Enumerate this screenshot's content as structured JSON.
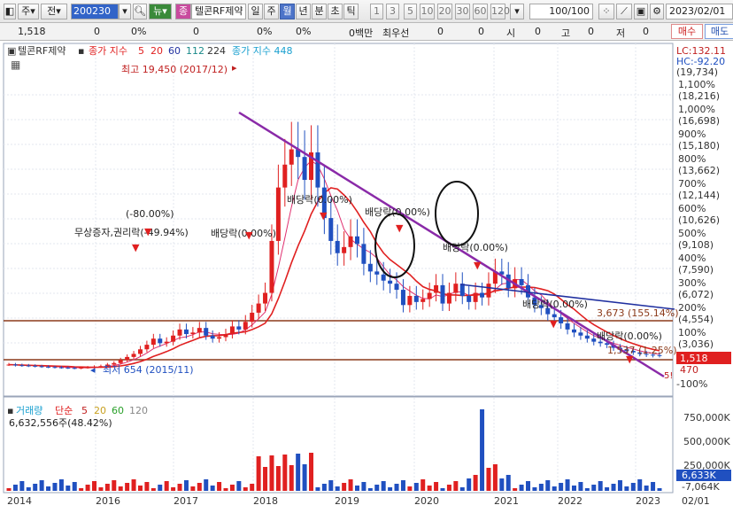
{
  "toolbar": {
    "type_label": "주",
    "market_label": "전",
    "code": "200230",
    "search_icon": "magnifier-icon",
    "news_label": "뉴",
    "chart_toggle": "종",
    "stock_name": "텔콘RF제약",
    "periods": [
      "일",
      "주",
      "월",
      "년",
      "분",
      "초",
      "틱"
    ],
    "selected_period": "월",
    "intervals": [
      "1",
      "3",
      "5",
      "10",
      "20",
      "30",
      "60",
      "120"
    ],
    "count": "100",
    "count_total": "/100",
    "date": "2023/02/01"
  },
  "infobar": {
    "price": "1,518",
    "v1": "0",
    "v2": "0%",
    "v3": "0",
    "v4": "0%",
    "v5": "0%",
    "v6": "0백만",
    "prio_label": "최우선",
    "v7": "0",
    "v8": "0",
    "open_label": "시",
    "v9": "0",
    "high_label": "고",
    "v10": "0",
    "low_label": "저",
    "v11": "0",
    "buy_label": "매수",
    "sell_label": "매도"
  },
  "legend": {
    "name": "텔콘RF제약",
    "ma_label": "종가 지수",
    "ma_periods": [
      "5",
      "20",
      "60",
      "112",
      "224"
    ],
    "extra": "종가 지수 448",
    "volume_label": "거래량",
    "volume_type": "단순",
    "vol_periods": [
      "5",
      "20",
      "60",
      "120"
    ],
    "volume_value": "6,632,556주(48.42%)"
  },
  "annotations": {
    "high": "최고 19,450 (2017/12)",
    "low": "최저 654 (2015/11)",
    "rights": "무상증자,권리락(-49.94%)",
    "rights2": "(-80.00%)",
    "div1": "배당락(0.00%)",
    "div2": "배당락(0.00%)",
    "div3": "배당락(0.00%)",
    "div4": "배당락(0.00%)",
    "div5": "배당락(0.00%)",
    "div6": "배당락(0.00%)",
    "level1": "3,673 (155.14%)",
    "level2": "1,537 (1.25%)",
    "far_right": "5!"
  },
  "right_axis": {
    "lc": "LC:132.11",
    "hc": "HC:-92.20",
    "top": "(19,734)",
    "labels": [
      [
        "1,100%",
        "(18,216)"
      ],
      [
        "1,000%",
        "(16,698)"
      ],
      [
        "900%",
        "(15,180)"
      ],
      [
        "800%",
        "(13,662)"
      ],
      [
        "700%",
        "(12,144)"
      ],
      [
        "600%",
        "(10,626)"
      ],
      [
        "500%",
        "(9,108)"
      ],
      [
        "400%",
        "(7,590)"
      ],
      [
        "300%",
        "(6,072)"
      ],
      [
        "200%",
        "(4,554)"
      ],
      [
        "100%",
        "(3,036)"
      ]
    ],
    "current": "1,518",
    "current2": "470",
    "bottom": "-100%",
    "vol_labels": [
      "750,000K",
      "500,000K",
      "250,000K"
    ],
    "vol_current": "6,633K",
    "vol_bottom": "-7,064K"
  },
  "x_axis": [
    "2014",
    "2016",
    "2017",
    "2018",
    "2019",
    "2020",
    "2021",
    "2022",
    "2023",
    "02/01"
  ],
  "colors": {
    "up": "#e02020",
    "down": "#2050c0",
    "trend": "#8a2aa8",
    "ma20": "#e02020",
    "ma60": "#2030a0",
    "level": "#8b3a1a"
  },
  "chart_data": {
    "type": "candlestick",
    "series": [
      {
        "name": "종가",
        "values": [
          900,
          860,
          840,
          820,
          790,
          760,
          740,
          720,
          700,
          680,
          660,
          700,
          720,
          760,
          800,
          900,
          1000,
          1200,
          1400,
          1600,
          1900,
          2200,
          2600,
          2300,
          2400,
          2800,
          3200,
          2900,
          3000,
          3300,
          2800,
          2600,
          2700,
          2900,
          3400,
          3200,
          3700,
          4300,
          4900,
          5600,
          9000,
          12500,
          14000,
          15000,
          14500,
          13000,
          14800,
          12500,
          10500,
          9000,
          8200,
          8600,
          9300,
          8800,
          7500,
          7000,
          6800,
          6400,
          6200,
          5800,
          4800,
          5400,
          5000,
          5200,
          5600,
          6100,
          4900,
          5600,
          6200,
          5400,
          5000,
          5600,
          5300,
          6200,
          7000,
          6800,
          5900,
          6500,
          6100,
          5300,
          4800,
          4600,
          4200,
          4000,
          3600,
          3200,
          3000,
          2800,
          2600,
          2400,
          2300,
          2200,
          2000,
          1900,
          1800,
          1700,
          1600,
          1550,
          1520,
          1518
        ]
      }
    ]
  }
}
